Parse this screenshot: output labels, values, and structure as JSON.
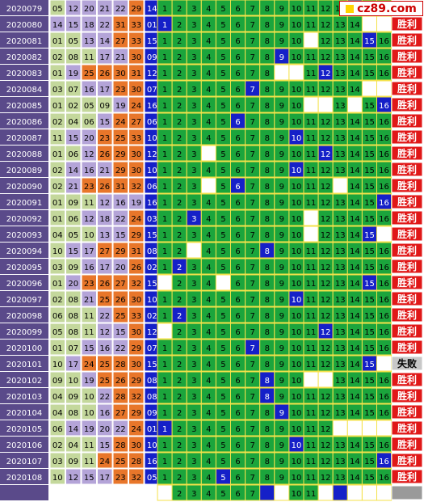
{
  "watermark": "cz89.com",
  "chart_data": {
    "type": "table",
    "columns": {
      "issue": "period",
      "numbers": [
        "n1",
        "n2",
        "n3",
        "n4",
        "n5",
        "n6"
      ],
      "special": "blue_ball",
      "distribution": [
        "1",
        "2",
        "3",
        "4",
        "5",
        "6",
        "7",
        "8",
        "9",
        "10",
        "11",
        "12",
        "13",
        "14",
        "15",
        "16"
      ],
      "result": "outcome"
    },
    "colors": {
      "period_bg": "#5a4a8a",
      "period_text": "#ffffff",
      "low_bg": "#c4d89c",
      "mid_bg": "#b4a4d8",
      "high_bg": "#e8762a",
      "blue_bg": "#1520c8",
      "grid_bg": "#1ba53c",
      "grid_line": "#f4e24a",
      "win_bg": "#e01818",
      "lose_bg": "#c8c8c8"
    },
    "rows": [
      {
        "issue": "2020079",
        "nums": [
          "05",
          "12",
          "20",
          "21",
          "22",
          "29"
        ],
        "blue": "14",
        "hit": 14,
        "result": ""
      },
      {
        "issue": "2020080",
        "nums": [
          "14",
          "15",
          "18",
          "22",
          "31",
          "33"
        ],
        "blue": "01",
        "hit": 1,
        "result": "胜利"
      },
      {
        "issue": "2020081",
        "nums": [
          "01",
          "05",
          "13",
          "14",
          "27",
          "33"
        ],
        "blue": "15",
        "hit": 15,
        "result": "胜利"
      },
      {
        "issue": "2020082",
        "nums": [
          "02",
          "08",
          "11",
          "17",
          "21",
          "30"
        ],
        "blue": "09",
        "hit": 9,
        "result": "胜利"
      },
      {
        "issue": "2020083",
        "nums": [
          "01",
          "19",
          "25",
          "26",
          "30",
          "31"
        ],
        "blue": "12",
        "hit": 12,
        "result": "胜利"
      },
      {
        "issue": "2020084",
        "nums": [
          "03",
          "07",
          "16",
          "17",
          "23",
          "30"
        ],
        "blue": "07",
        "hit": 7,
        "result": "胜利"
      },
      {
        "issue": "2020085",
        "nums": [
          "01",
          "02",
          "05",
          "09",
          "19",
          "24"
        ],
        "blue": "16",
        "hit": 16,
        "result": "胜利"
      },
      {
        "issue": "2020086",
        "nums": [
          "02",
          "04",
          "06",
          "15",
          "24",
          "27"
        ],
        "blue": "06",
        "hit": 6,
        "result": "胜利"
      },
      {
        "issue": "2020087",
        "nums": [
          "11",
          "15",
          "20",
          "23",
          "25",
          "33"
        ],
        "blue": "10",
        "hit": 10,
        "result": "胜利"
      },
      {
        "issue": "2020088",
        "nums": [
          "01",
          "06",
          "12",
          "26",
          "29",
          "30"
        ],
        "blue": "12",
        "hit": 12,
        "result": "胜利"
      },
      {
        "issue": "2020089",
        "nums": [
          "02",
          "14",
          "16",
          "21",
          "29",
          "30"
        ],
        "blue": "10",
        "hit": 10,
        "result": "胜利"
      },
      {
        "issue": "2020090",
        "nums": [
          "02",
          "21",
          "23",
          "26",
          "31",
          "32"
        ],
        "blue": "06",
        "hit": 6,
        "result": "胜利"
      },
      {
        "issue": "2020091",
        "nums": [
          "01",
          "09",
          "11",
          "12",
          "16",
          "19"
        ],
        "blue": "16",
        "hit": 16,
        "result": "胜利"
      },
      {
        "issue": "2020092",
        "nums": [
          "01",
          "06",
          "12",
          "18",
          "22",
          "24"
        ],
        "blue": "03",
        "hit": 3,
        "result": "胜利"
      },
      {
        "issue": "2020093",
        "nums": [
          "04",
          "05",
          "10",
          "13",
          "15",
          "29"
        ],
        "blue": "15",
        "hit": 15,
        "result": "胜利"
      },
      {
        "issue": "2020094",
        "nums": [
          "10",
          "15",
          "17",
          "27",
          "29",
          "31"
        ],
        "blue": "08",
        "hit": 8,
        "result": "胜利"
      },
      {
        "issue": "2020095",
        "nums": [
          "03",
          "09",
          "16",
          "17",
          "20",
          "26"
        ],
        "blue": "02",
        "hit": 2,
        "result": "胜利"
      },
      {
        "issue": "2020096",
        "nums": [
          "01",
          "20",
          "23",
          "26",
          "27",
          "32"
        ],
        "blue": "15",
        "hit": 15,
        "result": "胜利"
      },
      {
        "issue": "2020097",
        "nums": [
          "02",
          "08",
          "21",
          "25",
          "26",
          "30"
        ],
        "blue": "10",
        "hit": 10,
        "result": "胜利"
      },
      {
        "issue": "2020098",
        "nums": [
          "06",
          "08",
          "11",
          "22",
          "25",
          "33"
        ],
        "blue": "02",
        "hit": 2,
        "result": "胜利"
      },
      {
        "issue": "2020099",
        "nums": [
          "05",
          "08",
          "11",
          "12",
          "15",
          "30"
        ],
        "blue": "12",
        "hit": 12,
        "result": "胜利"
      },
      {
        "issue": "2020100",
        "nums": [
          "01",
          "07",
          "15",
          "16",
          "22",
          "29"
        ],
        "blue": "07",
        "hit": 7,
        "result": "胜利"
      },
      {
        "issue": "2020101",
        "nums": [
          "10",
          "17",
          "24",
          "25",
          "28",
          "30"
        ],
        "blue": "15",
        "hit": 15,
        "result": "失败"
      },
      {
        "issue": "2020102",
        "nums": [
          "09",
          "10",
          "19",
          "25",
          "26",
          "29"
        ],
        "blue": "08",
        "hit": 8,
        "result": "胜利"
      },
      {
        "issue": "2020103",
        "nums": [
          "04",
          "09",
          "10",
          "22",
          "28",
          "32"
        ],
        "blue": "08",
        "hit": 8,
        "result": "胜利"
      },
      {
        "issue": "2020104",
        "nums": [
          "04",
          "08",
          "10",
          "16",
          "27",
          "29"
        ],
        "blue": "09",
        "hit": 9,
        "result": "胜利"
      },
      {
        "issue": "2020105",
        "nums": [
          "06",
          "14",
          "19",
          "20",
          "22",
          "24"
        ],
        "blue": "01",
        "hit": 1,
        "result": "胜利"
      },
      {
        "issue": "2020106",
        "nums": [
          "02",
          "04",
          "11",
          "15",
          "28",
          "30"
        ],
        "blue": "10",
        "hit": 10,
        "result": "胜利"
      },
      {
        "issue": "2020107",
        "nums": [
          "03",
          "09",
          "11",
          "24",
          "25",
          "28"
        ],
        "blue": "16",
        "hit": 16,
        "result": "胜利"
      },
      {
        "issue": "2020108",
        "nums": [
          "10",
          "12",
          "15",
          "17",
          "23",
          "32"
        ],
        "blue": "05",
        "hit": 5,
        "result": "胜利"
      },
      {
        "issue": "",
        "nums": [
          "",
          "",
          "",
          "",
          "",
          ""
        ],
        "blue": "",
        "hit": 0,
        "result": ""
      }
    ],
    "white": [
      [],
      [
        15,
        16
      ],
      [
        11
      ],
      [],
      [
        9,
        10
      ],
      [
        15,
        16
      ],
      [
        11,
        12,
        14
      ],
      [],
      [],
      [
        4
      ],
      [],
      [
        4,
        13
      ],
      [],
      [
        11
      ],
      [
        11,
        16
      ],
      [
        3
      ],
      [],
      [
        1,
        5
      ],
      [],
      [],
      [
        1
      ],
      [],
      [
        15,
        16
      ],
      [
        11,
        12
      ],
      [],
      [],
      [
        13,
        14,
        15,
        16
      ],
      [],
      [],
      [],
      [
        1,
        8,
        9,
        12,
        13,
        14,
        15,
        16
      ]
    ],
    "blue_marks": {
      "30": [
        8,
        13
      ]
    },
    "result_labels": {
      "win": "胜利",
      "lose": "失败"
    }
  }
}
